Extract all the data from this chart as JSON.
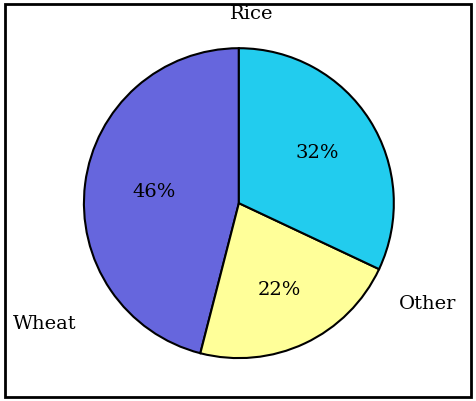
{
  "slices": [
    46,
    22,
    32
  ],
  "labels": [
    "Rice",
    "Other",
    "Wheat"
  ],
  "colors": [
    "#6666dd",
    "#ffff99",
    "#22ccee"
  ],
  "edge_color": "#000000",
  "edge_width": 1.5,
  "pct_labels": [
    "46%",
    "22%",
    "32%"
  ],
  "startangle": 90,
  "label_fontsize": 14,
  "pct_fontsize": 14,
  "figsize": [
    4.76,
    4.01
  ],
  "dpi": 100,
  "background_color": "#ffffff"
}
